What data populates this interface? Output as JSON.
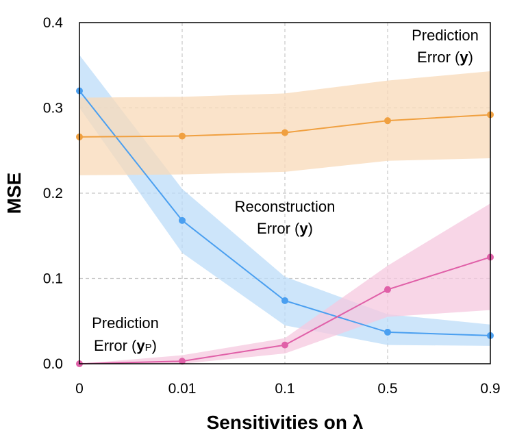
{
  "chart_data": {
    "type": "line",
    "xlabel": "Sensitivities on λ",
    "ylabel": "MSE",
    "categories": [
      "0",
      "0.01",
      "0.1",
      "0.5",
      "0.9"
    ],
    "ylim": [
      0,
      0.4
    ],
    "yticks": [
      "0.0",
      "0.1",
      "0.2",
      "0.3",
      "0.4"
    ],
    "grid": true,
    "series": [
      {
        "key": "recon_y",
        "color": "#4a9ff0",
        "band_color": "#bcdcf8",
        "values": [
          0.32,
          0.168,
          0.074,
          0.037,
          0.033
        ],
        "lower": [
          0.3,
          0.13,
          0.045,
          0.022,
          0.021
        ],
        "upper": [
          0.362,
          0.205,
          0.102,
          0.058,
          0.046
        ]
      },
      {
        "key": "pred_y",
        "color": "#f0a040",
        "band_color": "#f8d9b8",
        "values": [
          0.266,
          0.267,
          0.271,
          0.285,
          0.292
        ],
        "lower": [
          0.221,
          0.222,
          0.225,
          0.238,
          0.241
        ],
        "upper": [
          0.312,
          0.313,
          0.317,
          0.332,
          0.343
        ]
      },
      {
        "key": "pred_yp",
        "color": "#e060a8",
        "band_color": "#f5c8df",
        "values": [
          0.0,
          0.003,
          0.022,
          0.087,
          0.125
        ],
        "lower": [
          0.0,
          0.0,
          0.012,
          0.055,
          0.063
        ],
        "upper": [
          0.0,
          0.01,
          0.03,
          0.115,
          0.188
        ]
      }
    ],
    "annotations": {
      "recon_y": {
        "line1": "Reconstruction",
        "line2_prefix": "Error (",
        "var": "y",
        "sub": "",
        "suffix": ")"
      },
      "pred_y": {
        "line1": "Prediction",
        "line2_prefix": "Error (",
        "var": "y",
        "sub": "",
        "suffix": ")"
      },
      "pred_yp": {
        "line1": "Prediction",
        "line2_prefix": "Error (",
        "var": "y",
        "sub": "P",
        "suffix": ")"
      }
    }
  }
}
